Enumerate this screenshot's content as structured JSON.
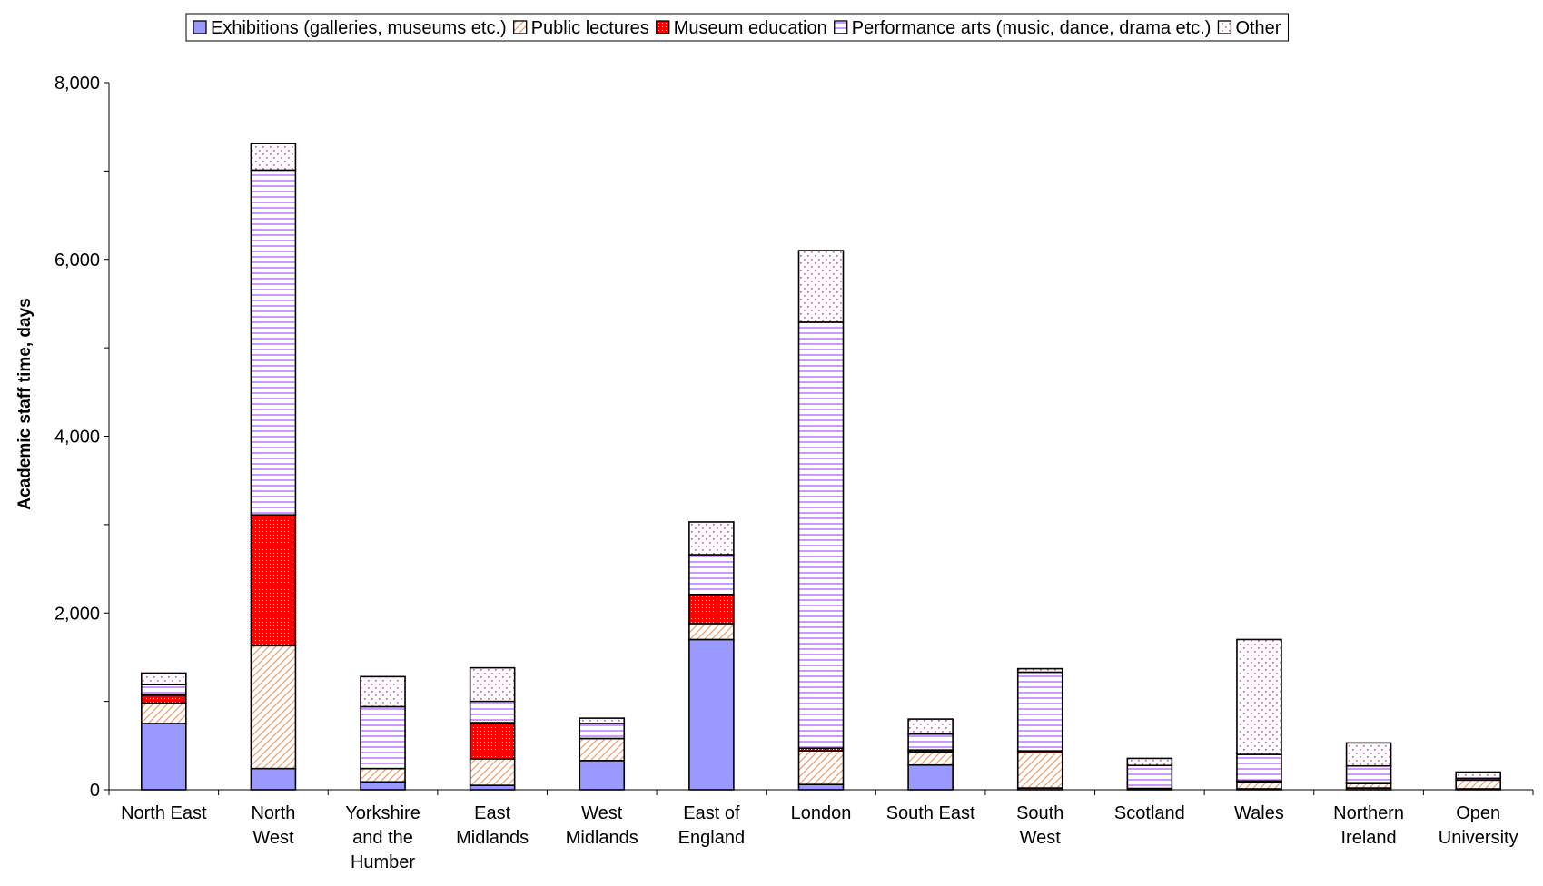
{
  "chart_data": {
    "type": "bar",
    "stacked": true,
    "title": "",
    "xlabel": "",
    "ylabel": "Academic staff time, days",
    "ylim": [
      0,
      8000
    ],
    "yticks": [
      0,
      2000,
      4000,
      6000,
      8000
    ],
    "ytick_labels": [
      "0",
      "2,000",
      "4,000",
      "6,000",
      "8,000"
    ],
    "grid": false,
    "legend_position": "top",
    "categories": [
      "North East",
      "North West",
      "Yorkshire and the Humber",
      "East Midlands",
      "West Midlands",
      "East of England",
      "London",
      "South East",
      "South West",
      "Scotland",
      "Wales",
      "Northern Ireland",
      "Open University"
    ],
    "category_lines": [
      [
        "North East"
      ],
      [
        "North",
        "West"
      ],
      [
        "Yorkshire",
        "and the",
        "Humber"
      ],
      [
        "East",
        "Midlands"
      ],
      [
        "West",
        "Midlands"
      ],
      [
        "East of",
        "England"
      ],
      [
        "London"
      ],
      [
        "South East"
      ],
      [
        "South",
        "West"
      ],
      [
        "Scotland"
      ],
      [
        "Wales"
      ],
      [
        "Northern",
        "Ireland"
      ],
      [
        "Open",
        "University"
      ]
    ],
    "series": [
      {
        "name": "Exhibitions (galleries, museums etc.)",
        "color": "#9999ff",
        "pattern": "solid",
        "values": [
          750,
          240,
          90,
          50,
          330,
          1700,
          60,
          280,
          20,
          5,
          10,
          20,
          10
        ]
      },
      {
        "name": "Public lectures",
        "color": "#ff9966",
        "pattern": "diagonal",
        "values": [
          230,
          1390,
          150,
          300,
          250,
          180,
          380,
          150,
          400,
          10,
          80,
          50,
          100
        ]
      },
      {
        "name": "Museum education",
        "color": "#ff0000",
        "pattern": "dots",
        "values": [
          90,
          1480,
          0,
          410,
          0,
          330,
          30,
          20,
          20,
          0,
          10,
          10,
          0
        ]
      },
      {
        "name": "Performance arts (music, dance, drama etc.)",
        "color": "#cc99ff",
        "pattern": "horizontal",
        "values": [
          120,
          3900,
          700,
          240,
          170,
          450,
          4820,
          180,
          890,
          260,
          300,
          190,
          20
        ]
      },
      {
        "name": "Other",
        "color": "#ff66cc",
        "pattern": "sparse-dots",
        "values": [
          130,
          300,
          340,
          380,
          60,
          370,
          810,
          170,
          40,
          80,
          1300,
          260,
          70
        ]
      }
    ]
  }
}
